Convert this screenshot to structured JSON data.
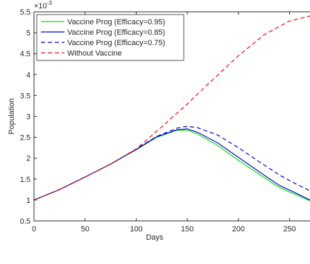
{
  "chart_data": {
    "type": "line",
    "title": "",
    "xlabel": "Days",
    "ylabel": "Population",
    "y_multiplier_label": "×10-3",
    "xlim": [
      0,
      270
    ],
    "ylim": [
      0.5,
      5.5
    ],
    "xticks": [
      0,
      50,
      100,
      150,
      200,
      250
    ],
    "yticks": [
      0.5,
      1,
      1.5,
      2,
      2.5,
      3,
      3.5,
      4,
      4.5,
      5,
      5.5
    ],
    "grid": false,
    "legend_position": "top-left",
    "series": [
      {
        "name": "Vaccine Prog (Efficacy=0.95)",
        "color": "#00e000",
        "dash": "solid",
        "x": [
          0,
          25,
          50,
          75,
          100,
          120,
          140,
          150,
          160,
          180,
          200,
          220,
          240,
          255,
          270
        ],
        "y": [
          1.0,
          1.25,
          1.55,
          1.86,
          2.2,
          2.5,
          2.67,
          2.67,
          2.58,
          2.3,
          1.95,
          1.62,
          1.3,
          1.14,
          0.98
        ]
      },
      {
        "name": "Vaccine Prog (Efficacy=0.85)",
        "color": "#0000cc",
        "dash": "solid",
        "x": [
          0,
          25,
          50,
          75,
          100,
          120,
          140,
          150,
          160,
          180,
          200,
          220,
          240,
          255,
          270
        ],
        "y": [
          1.0,
          1.25,
          1.55,
          1.86,
          2.21,
          2.51,
          2.68,
          2.7,
          2.62,
          2.36,
          2.02,
          1.68,
          1.35,
          1.18,
          1.0
        ]
      },
      {
        "name": "Vaccine Prog (Efficacy=0.75)",
        "color": "#0000cc",
        "dash": "dashed",
        "x": [
          0,
          25,
          50,
          75,
          100,
          120,
          140,
          150,
          160,
          180,
          200,
          220,
          240,
          255,
          270
        ],
        "y": [
          1.0,
          1.25,
          1.55,
          1.86,
          2.22,
          2.52,
          2.72,
          2.76,
          2.73,
          2.55,
          2.25,
          1.92,
          1.6,
          1.4,
          1.22
        ]
      },
      {
        "name": "Without Vaccine",
        "color": "#ff0000",
        "dash": "dashed",
        "x": [
          0,
          25,
          50,
          75,
          100,
          125,
          150,
          175,
          200,
          225,
          250,
          270
        ],
        "y": [
          1.0,
          1.25,
          1.55,
          1.86,
          2.22,
          2.75,
          3.3,
          3.88,
          4.45,
          4.95,
          5.28,
          5.4
        ]
      }
    ]
  }
}
